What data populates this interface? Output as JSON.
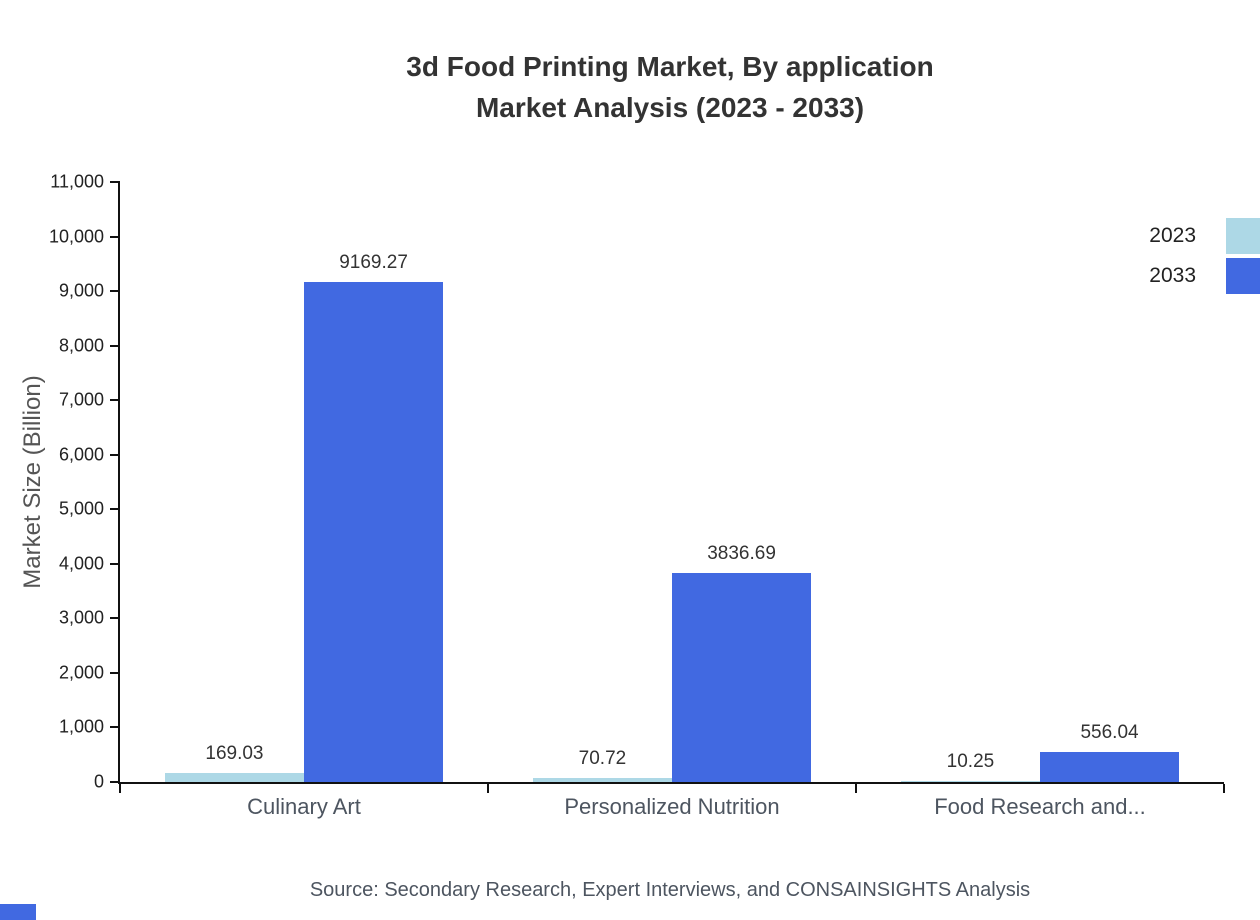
{
  "title": {
    "line1": "3d Food Printing Market, By application",
    "line2": "Market Analysis (2023 - 2033)"
  },
  "source": "Source: Secondary Research, Expert Interviews, and CONSAINSIGHTS Analysis",
  "colors": {
    "bar_2023": "#ADD8E6",
    "bar_2033": "#4169E1",
    "axis": "#111111",
    "accent": "#4169E1"
  },
  "chart_data": {
    "type": "bar",
    "categories": [
      "Culinary Art",
      "Personalized Nutrition",
      "Food Research and..."
    ],
    "series": [
      {
        "name": "2023",
        "color": "#ADD8E6",
        "values": [
          169.03,
          70.72,
          10.25
        ]
      },
      {
        "name": "2033",
        "color": "#4169E1",
        "values": [
          9169.27,
          3836.69,
          556.04
        ]
      }
    ],
    "title": "3d Food Printing Market, By application Market Analysis (2023 - 2033)",
    "xlabel": "",
    "ylabel": "Market Size (Billion)",
    "ylim": [
      0,
      11000
    ],
    "yticks": [
      0,
      1000,
      2000,
      3000,
      4000,
      5000,
      6000,
      7000,
      8000,
      9000,
      10000,
      11000
    ],
    "value_label_decimals": 2,
    "grid": false,
    "legend_position": "top-right"
  }
}
